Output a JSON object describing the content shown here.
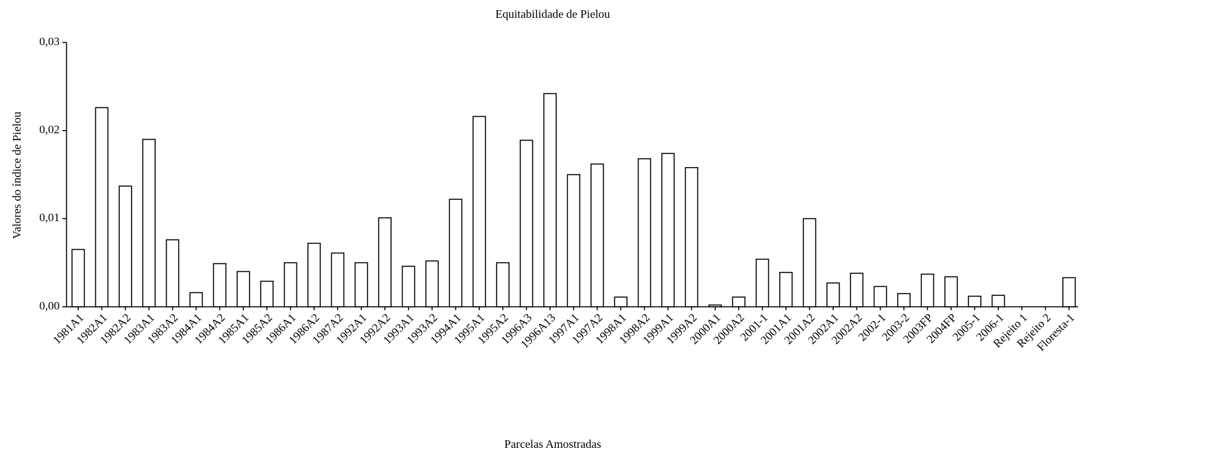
{
  "chart_data": {
    "type": "bar",
    "title": "Equitabilidade de Pielou",
    "xlabel": "Parcelas Amostradas",
    "ylabel": "Valores do índice de Pielou",
    "categories": [
      "1981A1",
      "1982A1",
      "1982A2",
      "1983A1",
      "1983A2",
      "1984A1",
      "1984A2",
      "1985A1",
      "1985A2",
      "1986A1",
      "1986A2",
      "1987A2",
      "1992A1",
      "1992A2",
      "1993A1",
      "1993A2",
      "1994A1",
      "1995A1",
      "1995A2",
      "1996A3",
      "1996A13",
      "1997A1",
      "1997A2",
      "1998A1",
      "1998A2",
      "1999A1",
      "1999A2",
      "2000A1",
      "2000A2",
      "2001-1",
      "2001A1",
      "2001A2",
      "2002A1",
      "2002A2",
      "2002-1",
      "2003-2",
      "2003FP",
      "2004FP",
      "2005-1",
      "2006-1",
      "Rejeito 1",
      "Rejeito 2",
      "Floresta-1"
    ],
    "values": [
      0.0065,
      0.0226,
      0.0137,
      0.019,
      0.0076,
      0.0016,
      0.0049,
      0.004,
      0.0029,
      0.005,
      0.0072,
      0.0061,
      0.005,
      0.0101,
      0.0046,
      0.0052,
      0.0122,
      0.0216,
      0.005,
      0.0189,
      0.0242,
      0.015,
      0.0162,
      0.0011,
      0.0168,
      0.0174,
      0.0158,
      0.0002,
      0.0011,
      0.0054,
      0.0039,
      0.01,
      0.0027,
      0.0038,
      0.0023,
      0.0015,
      0.0037,
      0.0034,
      0.0012,
      0.0013,
      0,
      0,
      0.0033
    ],
    "color": "#ffffff",
    "ylim": [
      0,
      0.03
    ],
    "yticks": [
      {
        "value": 0,
        "label": "0,00"
      },
      {
        "value": 0.01,
        "label": "0,01"
      },
      {
        "value": 0.02,
        "label": "0,02"
      },
      {
        "value": 0.03,
        "label": "0,03"
      }
    ]
  }
}
